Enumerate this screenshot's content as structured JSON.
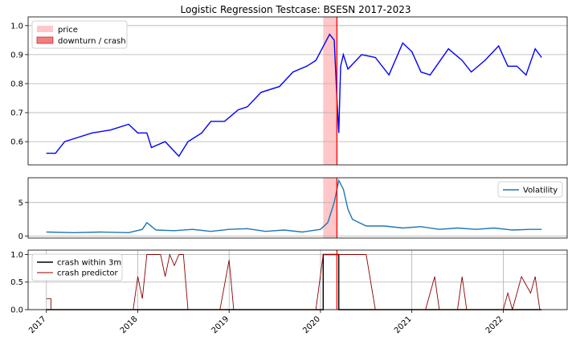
{
  "chart_data": [
    {
      "type": "line",
      "title": "Logistic Regression Testcase: BSESN 2017-2023",
      "xlabel": "",
      "ylabel": "",
      "xlim": [
        2016.8,
        2022.7
      ],
      "ylim": [
        0.52,
        1.03
      ],
      "yticks": [
        0.6,
        0.7,
        0.8,
        0.9,
        1.0
      ],
      "grid": "y",
      "legend": {
        "placement": "top-left",
        "entries": [
          "price",
          "downturn / crash"
        ]
      },
      "colors": {
        "price_line": "#0000ff",
        "price_span": "#ffc7c7",
        "crash_span": "#f08080",
        "crash_line": "#ff0000"
      },
      "shaded_regions": [
        {
          "name": "price",
          "x": [
            2020.03,
            2020.18
          ]
        },
        {
          "name": "downturn / crash",
          "x": [
            2020.18,
            2020.2
          ]
        }
      ],
      "series": [
        {
          "x": [
            2017.0,
            2017.1,
            2017.2,
            2017.3,
            2017.5,
            2017.7,
            2017.9,
            2018.0,
            2018.1,
            2018.15,
            2018.3,
            2018.45,
            2018.55,
            2018.7,
            2018.8,
            2018.95,
            2019.1,
            2019.2,
            2019.35,
            2019.55,
            2019.7,
            2019.85,
            2019.95,
            2020.1,
            2020.15,
            2020.18,
            2020.2,
            2020.22,
            2020.25,
            2020.3,
            2020.45,
            2020.6,
            2020.75,
            2020.9,
            2021.0,
            2021.1,
            2021.2,
            2021.4,
            2021.55,
            2021.65,
            2021.8,
            2021.95,
            2022.05,
            2022.15,
            2022.25,
            2022.35,
            2022.42
          ],
          "values": [
            0.56,
            0.56,
            0.6,
            0.61,
            0.63,
            0.64,
            0.66,
            0.63,
            0.63,
            0.58,
            0.6,
            0.55,
            0.6,
            0.63,
            0.67,
            0.67,
            0.71,
            0.72,
            0.77,
            0.79,
            0.84,
            0.86,
            0.88,
            0.97,
            0.95,
            0.75,
            0.63,
            0.86,
            0.9,
            0.85,
            0.9,
            0.89,
            0.83,
            0.94,
            0.91,
            0.84,
            0.83,
            0.92,
            0.88,
            0.84,
            0.88,
            0.93,
            0.86,
            0.86,
            0.83,
            0.92,
            0.89
          ]
        }
      ]
    },
    {
      "type": "line",
      "xlim": [
        2016.8,
        2022.7
      ],
      "ylim": [
        -0.3,
        8.7
      ],
      "yticks": [
        0,
        5
      ],
      "grid": "y",
      "legend": {
        "placement": "top-right",
        "entries": [
          "Volatility"
        ]
      },
      "colors": {
        "volatility": "#1f77b4"
      },
      "series": [
        {
          "name": "Volatility",
          "x": [
            2017.0,
            2017.3,
            2017.6,
            2017.9,
            2018.05,
            2018.1,
            2018.2,
            2018.4,
            2018.6,
            2018.8,
            2019.0,
            2019.2,
            2019.4,
            2019.6,
            2019.8,
            2020.0,
            2020.08,
            2020.15,
            2020.2,
            2020.25,
            2020.3,
            2020.35,
            2020.5,
            2020.7,
            2020.9,
            2021.1,
            2021.3,
            2021.5,
            2021.7,
            2021.9,
            2022.1,
            2022.3,
            2022.42
          ],
          "values": [
            0.6,
            0.5,
            0.6,
            0.5,
            1.0,
            2.0,
            0.9,
            0.8,
            1.0,
            0.7,
            1.0,
            1.1,
            0.7,
            0.9,
            0.6,
            1.0,
            2.0,
            5.0,
            8.3,
            7.0,
            4.0,
            2.5,
            1.5,
            1.5,
            1.2,
            1.4,
            1.0,
            1.2,
            1.0,
            1.2,
            0.9,
            1.0,
            1.0
          ]
        }
      ]
    },
    {
      "type": "line",
      "xlim": [
        2016.8,
        2022.7
      ],
      "ylim": [
        0.0,
        1.08
      ],
      "yticks": [
        0.0,
        0.5,
        1.0
      ],
      "xticks": [
        "2017",
        "2018",
        "2019",
        "2020",
        "2021",
        "2022"
      ],
      "xtick_values": [
        2017,
        2018,
        2019,
        2020,
        2021,
        2022
      ],
      "grid": "both",
      "legend": {
        "placement": "top-left",
        "entries": [
          "crash within 3m",
          "crash predictor"
        ]
      },
      "colors": {
        "crash_within_3m": "#000000",
        "crash_predictor": "#8b0000",
        "crash_line": "#ff0000"
      },
      "series": [
        {
          "name": "crash within 3m",
          "x": [
            2017.0,
            2020.03,
            2020.03,
            2020.2,
            2020.2,
            2022.42
          ],
          "values": [
            0,
            0,
            1,
            1,
            0,
            0
          ]
        },
        {
          "name": "crash predictor",
          "x": [
            2017.0,
            2017.05,
            2017.05,
            2017.08,
            2017.08,
            2017.95,
            2018.0,
            2018.05,
            2018.1,
            2018.15,
            2018.25,
            2018.3,
            2018.35,
            2018.4,
            2018.45,
            2018.5,
            2018.55,
            2018.9,
            2019.0,
            2019.05,
            2019.1,
            2019.95,
            2020.03,
            2020.2,
            2020.22,
            2020.5,
            2020.6,
            2021.15,
            2021.25,
            2021.3,
            2021.5,
            2021.55,
            2021.6,
            2022.0,
            2022.05,
            2022.1,
            2022.2,
            2022.3,
            2022.35,
            2022.4,
            2022.42
          ],
          "values": [
            0.2,
            0.2,
            0.0,
            0.0,
            0.0,
            0.0,
            0.6,
            0.2,
            1.0,
            1.0,
            1.0,
            0.6,
            1.0,
            0.8,
            1.0,
            1.0,
            0.0,
            0.0,
            0.9,
            0.0,
            0.0,
            0.0,
            1.0,
            1.0,
            1.0,
            1.0,
            0.0,
            0.0,
            0.6,
            0.0,
            0.0,
            0.6,
            0.0,
            0.0,
            0.3,
            0.0,
            0.6,
            0.3,
            0.6,
            0.0,
            0.0
          ]
        }
      ],
      "crash_marker_x": 2020.2
    }
  ]
}
